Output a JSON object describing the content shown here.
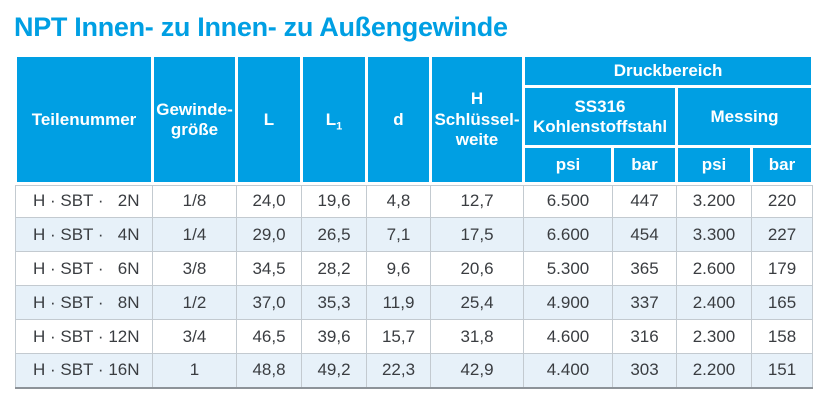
{
  "page_title": "NPT Innen- zu Innen- zu Außengewinde",
  "colors": {
    "accent_blue": "#009FE3",
    "alt_row_blue": "#E7F1F9",
    "grid_line": "#c3cad0",
    "bottom_border": "#8d9399",
    "data_text": "#3a3d41"
  },
  "table": {
    "headers": {
      "teilenummer": "Teilenummer",
      "gewinde_line1": "Gewinde-",
      "gewinde_line2": "größe",
      "l": "L",
      "l1_base": "L",
      "l1_sub": "1",
      "d": "d",
      "h_line1": "H",
      "h_line2": "Schlüssel-",
      "h_line3": "weite",
      "druckbereich": "Druckbereich",
      "ss316_line1": "SS316",
      "ss316_line2": "Kohlenstoffstahl",
      "messing": "Messing",
      "psi": "psi",
      "bar": "bar"
    },
    "rows": [
      {
        "part_prefix": "H · SBT ·",
        "part_num": "2N",
        "gewindegroesse": "1/8",
        "l": "24,0",
        "l1": "19,6",
        "d": "4,8",
        "h": "12,7",
        "ss316_psi": "6.500",
        "ss316_bar": "447",
        "messing_psi": "3.200",
        "messing_bar": "220"
      },
      {
        "part_prefix": "H · SBT ·",
        "part_num": "4N",
        "gewindegroesse": "1/4",
        "l": "29,0",
        "l1": "26,5",
        "d": "7,1",
        "h": "17,5",
        "ss316_psi": "6.600",
        "ss316_bar": "454",
        "messing_psi": "3.300",
        "messing_bar": "227"
      },
      {
        "part_prefix": "H · SBT ·",
        "part_num": "6N",
        "gewindegroesse": "3/8",
        "l": "34,5",
        "l1": "28,2",
        "d": "9,6",
        "h": "20,6",
        "ss316_psi": "5.300",
        "ss316_bar": "365",
        "messing_psi": "2.600",
        "messing_bar": "179"
      },
      {
        "part_prefix": "H · SBT ·",
        "part_num": "8N",
        "gewindegroesse": "1/2",
        "l": "37,0",
        "l1": "35,3",
        "d": "11,9",
        "h": "25,4",
        "ss316_psi": "4.900",
        "ss316_bar": "337",
        "messing_psi": "2.400",
        "messing_bar": "165"
      },
      {
        "part_prefix": "H · SBT ·",
        "part_num": "12N",
        "gewindegroesse": "3/4",
        "l": "46,5",
        "l1": "39,6",
        "d": "15,7",
        "h": "31,8",
        "ss316_psi": "4.600",
        "ss316_bar": "316",
        "messing_psi": "2.300",
        "messing_bar": "158"
      },
      {
        "part_prefix": "H · SBT ·",
        "part_num": "16N",
        "gewindegroesse": "1",
        "l": "48,8",
        "l1": "49,2",
        "d": "22,3",
        "h": "42,9",
        "ss316_psi": "4.400",
        "ss316_bar": "303",
        "messing_psi": "2.200",
        "messing_bar": "151"
      }
    ]
  }
}
